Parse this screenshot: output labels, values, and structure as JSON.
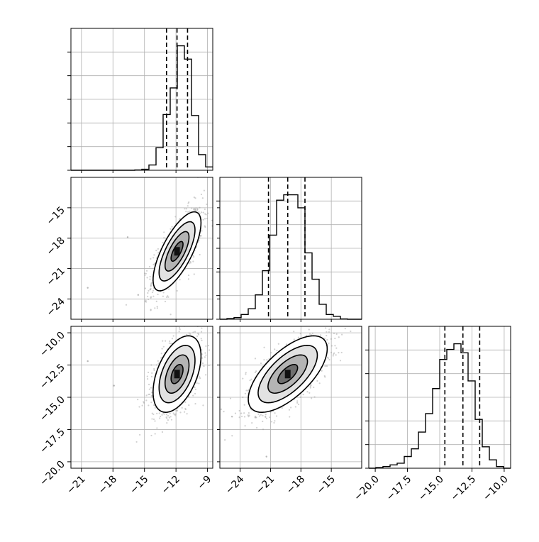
{
  "chart_data": {
    "type": "corner",
    "description_free": true,
    "grid": true,
    "parameters": [
      {
        "id": "p0",
        "range": [
          -22.0,
          -8.5
        ],
        "ticks": [
          -21,
          -18,
          -15,
          -12,
          -9
        ],
        "tick_labels": [
          "−21",
          "−18",
          "−15",
          "−12",
          "−9"
        ],
        "quantiles": [
          -12.9,
          -11.9,
          -10.9
        ],
        "hist_bins": [
          -22.0,
          -21.325,
          -20.65,
          -19.975,
          -19.3,
          -18.625,
          -17.95,
          -17.275,
          -16.6,
          -15.925,
          -15.25,
          -14.575,
          -13.9,
          -13.225,
          -12.55,
          -11.875,
          -11.2,
          -10.525,
          -9.85,
          -9.175,
          -8.5
        ],
        "hist_counts": [
          0,
          0,
          0,
          0,
          0,
          0,
          0,
          0,
          0,
          1,
          3,
          16,
          68,
          168,
          248,
          375,
          335,
          165,
          47,
          10
        ]
      },
      {
        "id": "p1",
        "range": [
          -26.0,
          -12.0
        ],
        "ticks": [
          -24,
          -21,
          -18,
          -15
        ],
        "tick_labels": [
          "−24",
          "−21",
          "−18",
          "−15"
        ],
        "quantiles": [
          -21.2,
          -19.3,
          -17.6
        ],
        "hist_bins": [
          -26.0,
          -25.3,
          -24.6,
          -23.9,
          -23.2,
          -22.5,
          -21.8,
          -21.1,
          -20.4,
          -19.7,
          -19.0,
          -18.3,
          -17.6,
          -16.9,
          -16.2,
          -15.5,
          -14.8,
          -14.1,
          -13.4,
          -12.7,
          -12.0
        ],
        "hist_counts": [
          0,
          2,
          5,
          15,
          33,
          77,
          153,
          265,
          375,
          392,
          392,
          351,
          209,
          126,
          47,
          15,
          9,
          1,
          0,
          0
        ]
      },
      {
        "id": "p2",
        "range": [
          -20.5,
          -9.5
        ],
        "ticks": [
          -20.0,
          -17.5,
          -15.0,
          -12.5,
          -10.0
        ],
        "tick_labels": [
          "−20.0",
          "−17.5",
          "−15.0",
          "−12.5",
          "−10.0"
        ],
        "quantiles": [
          -14.6,
          -13.2,
          -11.9
        ],
        "hist_bins": [
          -20.5,
          -19.95,
          -19.4,
          -18.85,
          -18.3,
          -17.75,
          -17.2,
          -16.65,
          -16.1,
          -15.55,
          -15.0,
          -14.45,
          -13.9,
          -13.35,
          -12.8,
          -12.25,
          -11.7,
          -11.15,
          -10.6,
          -10.05,
          -9.5
        ],
        "hist_counts": [
          0,
          2,
          5,
          10,
          15,
          35,
          58,
          108,
          163,
          238,
          325,
          355,
          372,
          345,
          261,
          146,
          64,
          25,
          5,
          0
        ]
      }
    ],
    "pairs": [
      {
        "x_param": "p0",
        "y_param": "p1",
        "mean": [
          -11.9,
          -19.3
        ],
        "cov": [
          [
            1.3,
            1.6
          ],
          [
            1.6,
            3.8
          ]
        ],
        "outliers": [
          [
            -16.6,
            -17.9
          ],
          [
            -20.4,
            -22.9
          ],
          [
            -15.6,
            -23.6
          ]
        ]
      },
      {
        "x_param": "p0",
        "y_param": "p2",
        "mean": [
          -11.9,
          -13.2
        ],
        "cov": [
          [
            1.3,
            0.8
          ],
          [
            0.8,
            2.2
          ]
        ],
        "outliers": [
          [
            -17.9,
            -14.1
          ],
          [
            -20.4,
            -12.2
          ]
        ]
      },
      {
        "x_param": "p1",
        "y_param": "p2",
        "mean": [
          -19.3,
          -13.2
        ],
        "cov": [
          [
            3.8,
            1.9
          ],
          [
            1.9,
            2.2
          ]
        ],
        "outliers": [
          [
            -24.8,
            -16.5
          ],
          [
            -21.4,
            -19.6
          ]
        ]
      }
    ],
    "contour_levels_sigma": [
      0.5,
      1.0,
      1.5,
      2.0
    ]
  }
}
